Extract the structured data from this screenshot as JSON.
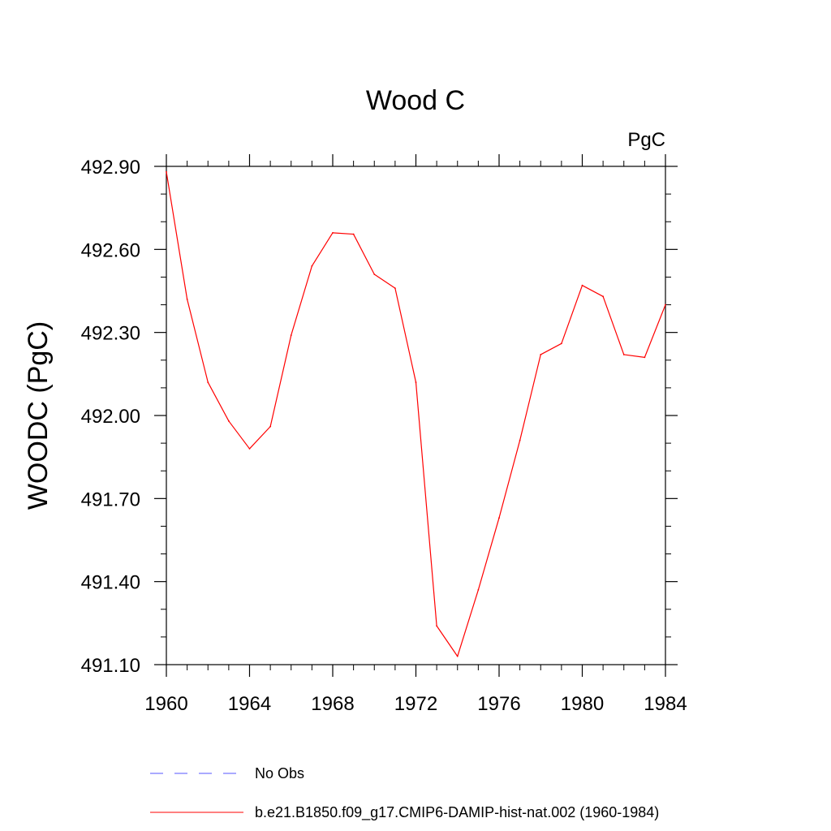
{
  "chart_data": {
    "type": "line",
    "title": "Wood C",
    "units_label": "PgC",
    "xlabel": "",
    "ylabel": "WOODC  (PgC)",
    "xlim": [
      1960,
      1984
    ],
    "ylim": [
      491.1,
      492.9
    ],
    "xticks": [
      "1960",
      "1964",
      "1968",
      "1972",
      "1976",
      "1980",
      "1984"
    ],
    "yticks": [
      "491.10",
      "491.40",
      "491.70",
      "492.00",
      "492.30",
      "492.60",
      "492.90"
    ],
    "x": [
      1960,
      1961,
      1962,
      1963,
      1964,
      1965,
      1966,
      1967,
      1968,
      1969,
      1970,
      1971,
      1972,
      1973,
      1974,
      1975,
      1976,
      1977,
      1978,
      1979,
      1980,
      1981,
      1982,
      1983,
      1984
    ],
    "series": [
      {
        "name": "b.e21.B1850.f09_g17.CMIP6-DAMIP-hist-nat.002 (1960-1984)",
        "color": "#ff0000",
        "style": "solid",
        "values": [
          492.88,
          492.42,
          492.12,
          491.98,
          491.88,
          491.96,
          492.29,
          492.54,
          492.66,
          492.655,
          492.51,
          492.46,
          492.12,
          491.24,
          491.13,
          491.37,
          491.63,
          491.91,
          492.22,
          492.26,
          492.47,
          492.43,
          492.22,
          492.21,
          492.4
        ]
      }
    ],
    "legend": [
      {
        "label": "No Obs",
        "color": "#5555ff",
        "style": "dashed"
      },
      {
        "label": "b.e21.B1850.f09_g17.CMIP6-DAMIP-hist-nat.002 (1960-1984)",
        "color": "#ff0000",
        "style": "solid"
      }
    ],
    "legend_position": "bottom"
  }
}
